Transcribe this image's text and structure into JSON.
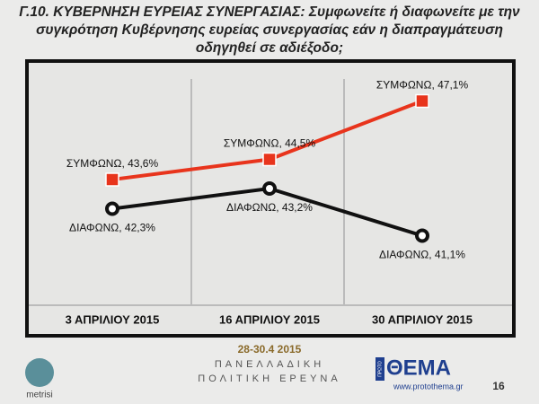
{
  "chart_data": {
    "type": "line",
    "title": "Γ.10. ΚΥΒΕΡΝΗΣΗ ΕΥΡΕΙΑΣ ΣΥΝΕΡΓΑΣΙΑΣ: Συμφωνείτε ή διαφωνείτε με την συγκρότηση Κυβέρνησης ευρείας συνεργασίας εάν η διαπραγμάτευση οδηγηθεί σε αδιέξοδο;",
    "categories": [
      "3 ΑΠΡΙΛΙΟΥ 2015",
      "16 ΑΠΡΙΛΙΟΥ 2015",
      "30 ΑΠΡΙΛΙΟΥ 2015"
    ],
    "series": [
      {
        "color": "#e8341c",
        "values": [
          43.6,
          44.5,
          47.1
        ],
        "value_labels": [
          "ΣΥΜΦΩΝΩ, 43,6%",
          "ΣΥΜΦΩΝΩ, 44,5%",
          "ΣΥΜΦΩΝΩ, 47,1%"
        ]
      },
      {
        "color": "#111111",
        "values": [
          42.3,
          43.2,
          41.1
        ],
        "value_labels": [
          "ΔΙΑΦΩΝΩ, 42,3%",
          "ΔΙΑΦΩΝΩ, 43,2%",
          "ΔΙΑΦΩΝΩ, 41,1%"
        ]
      }
    ],
    "ylim": [
      40,
      48
    ]
  },
  "footer": {
    "dates": "28-30.4 2015",
    "line1": "ΠΑΝΕΛΛΑΔΙΚΗ",
    "line2": "ΠΟΛΙΤΙΚΗ ΕΡΕΥΝΑ",
    "logo_left": "metrisi",
    "brand_small": "ΠΡΩΤΟ",
    "brand": "ΘΕΜΑ",
    "url": "www.protothema.gr",
    "page": "16"
  }
}
